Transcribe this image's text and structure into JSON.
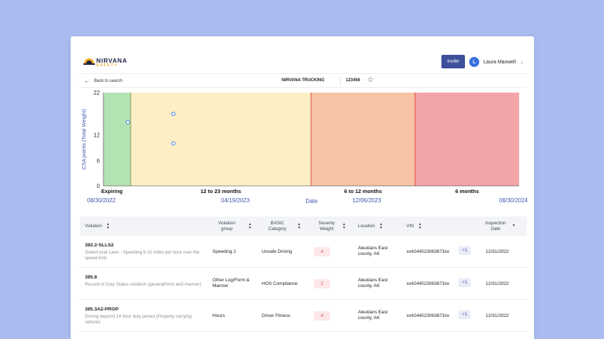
{
  "brand": {
    "name": "NIRVANA",
    "sub": "SAFETY",
    "colors": {
      "primary": "#3d4f9b",
      "accent": "#f2a623"
    }
  },
  "header": {
    "invite_label": "Invite",
    "user": {
      "initial": "L",
      "name": "Laura Maxwell"
    }
  },
  "subbar": {
    "back_label": "Back to search",
    "company": "NIRVANA TRUCKING",
    "dot_number": "123456"
  },
  "chart_data": {
    "type": "scatter",
    "ylabel": "CSA points (Total Weight)",
    "xlabel": "Date",
    "y_ticks": [
      0,
      6,
      12,
      22
    ],
    "ylim": [
      0,
      22
    ],
    "x_dates": [
      "08/30/2022",
      "04/19/2023",
      "12/06/2023",
      "08/30/2024"
    ],
    "zones": [
      {
        "label": "Expiring",
        "from": "08/30/2022",
        "to": "10/17/2022",
        "color": "#b2e3b3"
      },
      {
        "label": "12 to 23 months",
        "from": "10/17/2022",
        "to": "08/30/2023",
        "color": "#fcefc6"
      },
      {
        "label": "6 to 12 months",
        "from": "08/30/2023",
        "to": "02/29/2024",
        "color": "#f6c4a5"
      },
      {
        "label": "6 months",
        "from": "02/29/2024",
        "to": "08/30/2024",
        "color": "#f3a4a9"
      }
    ],
    "points": [
      {
        "date": "10/12/2022",
        "value": 15
      },
      {
        "date": "12/31/2022",
        "value": 17
      },
      {
        "date": "12/31/2022",
        "value": 10
      }
    ]
  },
  "table": {
    "columns": {
      "violation": "Violation",
      "group": "Violation group",
      "basic": "BASIC Category",
      "severity": "Severity Weight",
      "location": "Location",
      "vin": "VIN",
      "date": "Inspection Date"
    },
    "rows": [
      {
        "code": "392.2-SLLS2",
        "description": "State/Local Laws - Speeding 6-10 miles per hour over the speed limit.",
        "group": "Speeding 2",
        "basic": "Unsafe Driving",
        "severity": "4",
        "location": "Aleutians East county, AK",
        "vin": "xx4244523063673xx",
        "vin_more": "+1",
        "date": "12/31/2022"
      },
      {
        "code": "395.8",
        "description": "Record of Duty Status violation (general/form and manner)",
        "group": "Other Log/Form & Manner",
        "basic": "HOS Compliance",
        "severity": "2",
        "location": "Aleutians East county, AK",
        "vin": "xx4244523063673xx",
        "vin_more": "+1",
        "date": "12/31/2022"
      },
      {
        "code": "395.3A2-PROP",
        "description": "Driving beyond 14 hour duty period (Property carrying vehicle)",
        "group": "Hours",
        "basic": "Driver Fitness",
        "severity": "4",
        "location": "Aleutians East county, AK",
        "vin": "xx4244523063673xx",
        "vin_more": "+1",
        "date": "12/31/2022"
      }
    ]
  }
}
